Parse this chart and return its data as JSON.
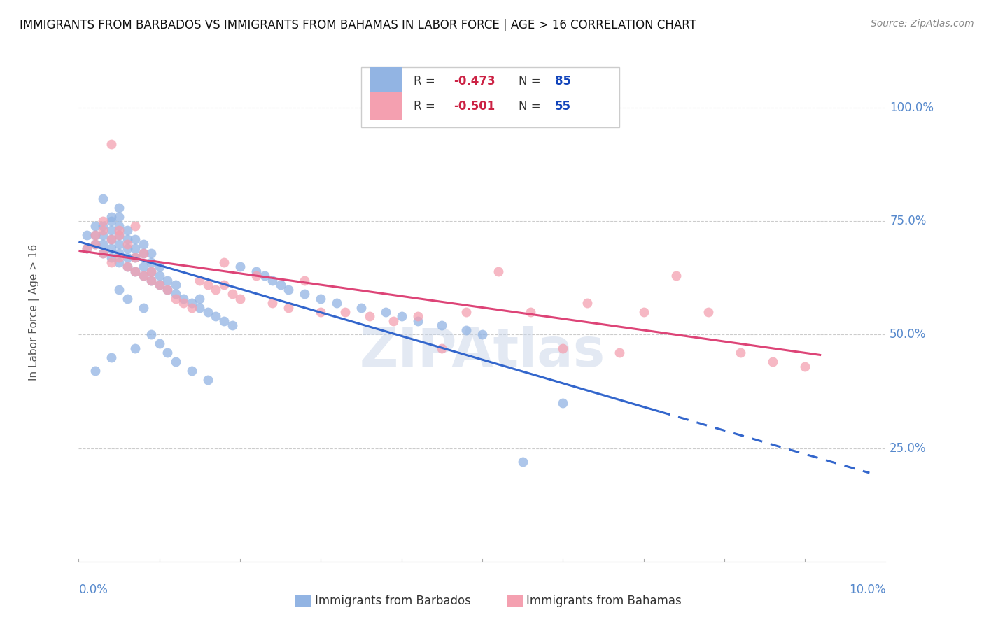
{
  "title": "IMMIGRANTS FROM BARBADOS VS IMMIGRANTS FROM BAHAMAS IN LABOR FORCE | AGE > 16 CORRELATION CHART",
  "source": "Source: ZipAtlas.com",
  "ylabel": "In Labor Force | Age > 16",
  "ytick_labels": [
    "100.0%",
    "75.0%",
    "50.0%",
    "25.0%"
  ],
  "ytick_values": [
    1.0,
    0.75,
    0.5,
    0.25
  ],
  "xmin": 0.0,
  "xmax": 0.1,
  "ymin": 0.0,
  "ymax": 1.1,
  "barbados_color": "#92b4e3",
  "bahamas_color": "#f4a0b0",
  "line_blue": "#3366cc",
  "line_pink": "#dd4477",
  "barbados_R": -0.473,
  "barbados_N": 85,
  "bahamas_R": -0.501,
  "bahamas_N": 55,
  "watermark": "ZIPAtlas",
  "watermark_color": "#c8d4e8",
  "barbados_scatter_x": [
    0.001,
    0.001,
    0.002,
    0.002,
    0.002,
    0.003,
    0.003,
    0.003,
    0.003,
    0.004,
    0.004,
    0.004,
    0.004,
    0.004,
    0.004,
    0.005,
    0.005,
    0.005,
    0.005,
    0.005,
    0.005,
    0.005,
    0.006,
    0.006,
    0.006,
    0.006,
    0.006,
    0.007,
    0.007,
    0.007,
    0.007,
    0.008,
    0.008,
    0.008,
    0.008,
    0.009,
    0.009,
    0.009,
    0.009,
    0.01,
    0.01,
    0.01,
    0.011,
    0.011,
    0.012,
    0.012,
    0.013,
    0.014,
    0.015,
    0.015,
    0.016,
    0.017,
    0.018,
    0.019,
    0.02,
    0.022,
    0.023,
    0.024,
    0.025,
    0.026,
    0.028,
    0.03,
    0.032,
    0.035,
    0.038,
    0.04,
    0.042,
    0.045,
    0.048,
    0.05,
    0.002,
    0.003,
    0.004,
    0.005,
    0.006,
    0.007,
    0.008,
    0.009,
    0.01,
    0.011,
    0.012,
    0.014,
    0.016,
    0.055,
    0.06
  ],
  "barbados_scatter_y": [
    0.69,
    0.72,
    0.7,
    0.72,
    0.74,
    0.68,
    0.7,
    0.72,
    0.74,
    0.67,
    0.69,
    0.71,
    0.73,
    0.75,
    0.76,
    0.66,
    0.68,
    0.7,
    0.72,
    0.74,
    0.76,
    0.78,
    0.65,
    0.67,
    0.69,
    0.71,
    0.73,
    0.64,
    0.67,
    0.69,
    0.71,
    0.63,
    0.65,
    0.68,
    0.7,
    0.62,
    0.64,
    0.66,
    0.68,
    0.61,
    0.63,
    0.65,
    0.6,
    0.62,
    0.59,
    0.61,
    0.58,
    0.57,
    0.56,
    0.58,
    0.55,
    0.54,
    0.53,
    0.52,
    0.65,
    0.64,
    0.63,
    0.62,
    0.61,
    0.6,
    0.59,
    0.58,
    0.57,
    0.56,
    0.55,
    0.54,
    0.53,
    0.52,
    0.51,
    0.5,
    0.42,
    0.8,
    0.45,
    0.6,
    0.58,
    0.47,
    0.56,
    0.5,
    0.48,
    0.46,
    0.44,
    0.42,
    0.4,
    0.22,
    0.35
  ],
  "bahamas_scatter_x": [
    0.001,
    0.002,
    0.002,
    0.003,
    0.003,
    0.004,
    0.004,
    0.004,
    0.005,
    0.005,
    0.006,
    0.006,
    0.007,
    0.007,
    0.008,
    0.008,
    0.009,
    0.01,
    0.011,
    0.012,
    0.013,
    0.014,
    0.015,
    0.016,
    0.017,
    0.018,
    0.019,
    0.02,
    0.022,
    0.024,
    0.026,
    0.028,
    0.03,
    0.033,
    0.036,
    0.039,
    0.042,
    0.045,
    0.048,
    0.052,
    0.056,
    0.06,
    0.063,
    0.067,
    0.07,
    0.074,
    0.078,
    0.082,
    0.086,
    0.09,
    0.003,
    0.005,
    0.007,
    0.009,
    0.018
  ],
  "bahamas_scatter_y": [
    0.69,
    0.7,
    0.72,
    0.68,
    0.73,
    0.66,
    0.71,
    0.92,
    0.67,
    0.72,
    0.65,
    0.7,
    0.64,
    0.74,
    0.63,
    0.68,
    0.62,
    0.61,
    0.6,
    0.58,
    0.57,
    0.56,
    0.62,
    0.61,
    0.6,
    0.66,
    0.59,
    0.58,
    0.63,
    0.57,
    0.56,
    0.62,
    0.55,
    0.55,
    0.54,
    0.53,
    0.54,
    0.47,
    0.55,
    0.64,
    0.55,
    0.47,
    0.57,
    0.46,
    0.55,
    0.63,
    0.55,
    0.46,
    0.44,
    0.43,
    0.75,
    0.73,
    0.67,
    0.64,
    0.61
  ],
  "background_color": "#ffffff",
  "grid_color": "#cccccc",
  "tick_color": "#5588cc",
  "title_color": "#111111",
  "axis_label_color": "#555555",
  "barb_trend_intercept": 0.705,
  "barb_trend_slope": -5.2,
  "bah_trend_intercept": 0.685,
  "bah_trend_slope": -2.5
}
